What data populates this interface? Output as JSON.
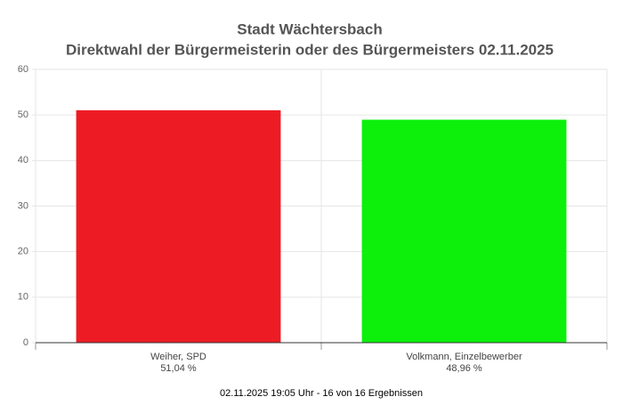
{
  "chart_data": {
    "type": "bar",
    "title": "Stadt Wächtersbach",
    "subtitle": "Direktwahl der Bürgermeisterin oder des Bürgermeisters 02.11.2025",
    "categories": [
      "Weiher, SPD",
      "Volkmann, Einzelbewerber"
    ],
    "values": [
      51.04,
      48.96
    ],
    "value_labels": [
      "51,04 %",
      "48,96 %"
    ],
    "colors": [
      "#ed1c24",
      "#0cf00c"
    ],
    "ylim": [
      0,
      60
    ],
    "yticks": [
      0,
      10,
      20,
      30,
      40,
      50,
      60
    ],
    "grid": true,
    "caption": "02.11.2025 19:05 Uhr - 16 von 16 Ergebnissen"
  }
}
